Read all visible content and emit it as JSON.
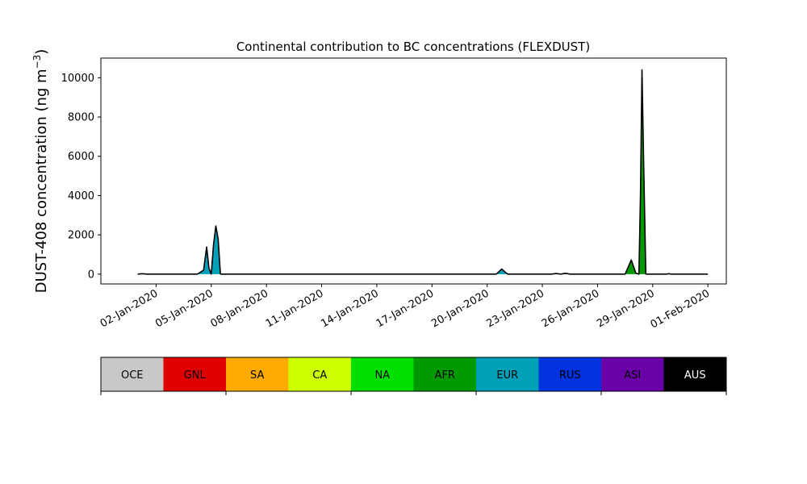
{
  "chart_data": {
    "type": "area",
    "title": "Continental contribution to BC concentrations (FLEXDUST)",
    "xlabel": "",
    "ylabel_main": "DUST-408 concentration (ng m",
    "ylabel_sup": "−3",
    "ylabel_close": ")",
    "x_unit": "days",
    "xlim": [
      "2019-12-30",
      "2020-02-02"
    ],
    "ylim": [
      -500,
      11000
    ],
    "y_ticks": [
      0,
      2000,
      4000,
      6000,
      8000,
      10000
    ],
    "x_ticks": [
      {
        "date": "2020-01-02",
        "label": "02-Jan-2020"
      },
      {
        "date": "2020-01-05",
        "label": "05-Jan-2020"
      },
      {
        "date": "2020-01-08",
        "label": "08-Jan-2020"
      },
      {
        "date": "2020-01-11",
        "label": "11-Jan-2020"
      },
      {
        "date": "2020-01-14",
        "label": "14-Jan-2020"
      },
      {
        "date": "2020-01-17",
        "label": "17-Jan-2020"
      },
      {
        "date": "2020-01-20",
        "label": "20-Jan-2020"
      },
      {
        "date": "2020-01-23",
        "label": "23-Jan-2020"
      },
      {
        "date": "2020-01-26",
        "label": "26-Jan-2020"
      },
      {
        "date": "2020-01-29",
        "label": "29-Jan-2020"
      },
      {
        "date": "2020-02-01",
        "label": "01-Feb-2020"
      }
    ],
    "series": [
      {
        "name": "EUR",
        "color": "#00a0b8",
        "points": [
          [
            "2020-01-01 00:00",
            0
          ],
          [
            "2020-01-01 06:00",
            20
          ],
          [
            "2020-01-01 12:00",
            0
          ],
          [
            "2020-01-04 06:00",
            0
          ],
          [
            "2020-01-04 14:00",
            200
          ],
          [
            "2020-01-04 18:00",
            1380
          ],
          [
            "2020-01-04 21:00",
            300
          ],
          [
            "2020-01-05 00:00",
            0
          ],
          [
            "2020-01-05 03:00",
            1500
          ],
          [
            "2020-01-05 06:00",
            2450
          ],
          [
            "2020-01-05 09:00",
            1800
          ],
          [
            "2020-01-05 12:00",
            0
          ],
          [
            "2020-01-20 12:00",
            0
          ],
          [
            "2020-01-20 19:00",
            260
          ],
          [
            "2020-01-21 00:00",
            80
          ],
          [
            "2020-01-21 03:00",
            0
          ],
          [
            "2020-01-23 12:00",
            0
          ],
          [
            "2020-01-23 18:00",
            30
          ],
          [
            "2020-01-24 00:00",
            0
          ],
          [
            "2020-01-24 06:00",
            40
          ],
          [
            "2020-01-24 12:00",
            0
          ],
          [
            "2020-02-01 00:00",
            0
          ]
        ]
      },
      {
        "name": "AFR",
        "color": "#009a00",
        "points": [
          [
            "2020-01-27 12:00",
            0
          ],
          [
            "2020-01-27 20:00",
            720
          ],
          [
            "2020-01-28 02:00",
            50
          ],
          [
            "2020-01-28 06:00",
            0
          ],
          [
            "2020-01-28 08:00",
            4000
          ],
          [
            "2020-01-28 10:00",
            10300
          ],
          [
            "2020-01-28 12:00",
            6000
          ],
          [
            "2020-01-28 15:00",
            0
          ],
          [
            "2020-02-01 00:00",
            0
          ]
        ]
      }
    ],
    "total_outline": [
      [
        "2020-01-01 00:00",
        0
      ],
      [
        "2020-01-01 06:00",
        20
      ],
      [
        "2020-01-01 12:00",
        0
      ],
      [
        "2020-01-04 06:00",
        0
      ],
      [
        "2020-01-04 14:00",
        200
      ],
      [
        "2020-01-04 18:00",
        1380
      ],
      [
        "2020-01-04 21:00",
        300
      ],
      [
        "2020-01-05 00:00",
        0
      ],
      [
        "2020-01-05 03:00",
        1500
      ],
      [
        "2020-01-05 06:00",
        2450
      ],
      [
        "2020-01-05 09:00",
        1800
      ],
      [
        "2020-01-05 12:00",
        0
      ],
      [
        "2020-01-20 12:00",
        0
      ],
      [
        "2020-01-20 19:00",
        260
      ],
      [
        "2020-01-21 00:00",
        80
      ],
      [
        "2020-01-21 03:00",
        0
      ],
      [
        "2020-01-23 12:00",
        0
      ],
      [
        "2020-01-23 18:00",
        30
      ],
      [
        "2020-01-24 00:00",
        0
      ],
      [
        "2020-01-24 06:00",
        40
      ],
      [
        "2020-01-24 12:00",
        0
      ],
      [
        "2020-01-27 12:00",
        0
      ],
      [
        "2020-01-27 20:00",
        720
      ],
      [
        "2020-01-28 02:00",
        50
      ],
      [
        "2020-01-28 06:00",
        0
      ],
      [
        "2020-01-28 08:00",
        4000
      ],
      [
        "2020-01-28 10:00",
        10400
      ],
      [
        "2020-01-28 12:00",
        6000
      ],
      [
        "2020-01-28 15:00",
        0
      ],
      [
        "2020-01-29 18:00",
        0
      ],
      [
        "2020-01-29 21:00",
        20
      ],
      [
        "2020-01-30 00:00",
        0
      ],
      [
        "2020-02-01 00:00",
        0
      ]
    ],
    "legend": [
      {
        "label": "OCE",
        "color": "#c8c8c8",
        "text_color": "#000000"
      },
      {
        "label": "GNL",
        "color": "#e00000",
        "text_color": "#000000"
      },
      {
        "label": "SA",
        "color": "#ffaa00",
        "text_color": "#000000"
      },
      {
        "label": "CA",
        "color": "#ccff00",
        "text_color": "#000000"
      },
      {
        "label": "NA",
        "color": "#00e000",
        "text_color": "#000000"
      },
      {
        "label": "AFR",
        "color": "#009a00",
        "text_color": "#000000"
      },
      {
        "label": "EUR",
        "color": "#00a0b8",
        "text_color": "#000000"
      },
      {
        "label": "RUS",
        "color": "#0032e0",
        "text_color": "#000000"
      },
      {
        "label": "ASI",
        "color": "#6a00a8",
        "text_color": "#000000"
      },
      {
        "label": "AUS",
        "color": "#000000",
        "text_color": "#ffffff"
      }
    ],
    "grid": false,
    "legend_placement": "bottom"
  }
}
